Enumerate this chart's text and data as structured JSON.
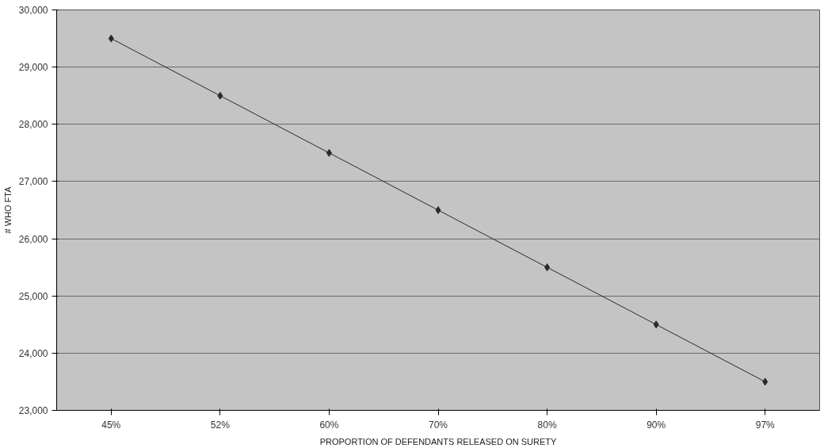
{
  "chart_data": {
    "type": "line",
    "xlabel": "PROPORTION OF DEFENDANTS RELEASED ON SURETY",
    "ylabel": "# WHO FTA",
    "categories": [
      "45%",
      "52%",
      "60%",
      "70%",
      "80%",
      "90%",
      "97%"
    ],
    "series": [
      {
        "color": "#2a2a2a",
        "values": [
          29500,
          28500,
          27500,
          26500,
          25500,
          24500,
          23500
        ]
      }
    ],
    "ylim": [
      23000,
      30000
    ],
    "yticks": [
      {
        "value": 23000,
        "label": "23,000"
      },
      {
        "value": 24000,
        "label": "24,000"
      },
      {
        "value": 25000,
        "label": "25,000"
      },
      {
        "value": 26000,
        "label": "26,000"
      },
      {
        "value": 27000,
        "label": "27,000"
      },
      {
        "value": 28000,
        "label": "28,000"
      },
      {
        "value": 29000,
        "label": "29,000"
      },
      {
        "value": 30000,
        "label": "30,000"
      }
    ],
    "grid": "y",
    "marker": "diamond",
    "line_style": "solid"
  }
}
